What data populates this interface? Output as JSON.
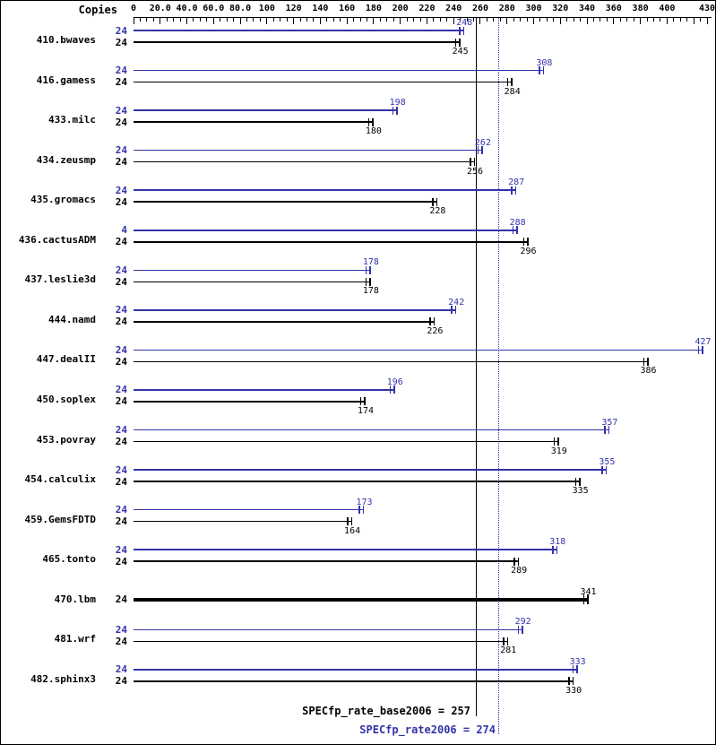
{
  "header": {
    "copies_label": "Copies"
  },
  "chart_data": {
    "type": "bar",
    "orientation": "horizontal",
    "axis": {
      "min": 0,
      "max": 430,
      "major_tick_step": 20,
      "minor_tick_step": 5,
      "labeled_ticks": [
        0,
        20,
        40,
        60,
        80,
        100,
        120,
        140,
        160,
        180,
        200,
        220,
        240,
        260,
        280,
        300,
        320,
        340,
        360,
        380,
        400,
        430
      ],
      "tick_labels": [
        "0",
        "20.0",
        "40.0",
        "60.0",
        "80.0",
        "100",
        "120",
        "140",
        "160",
        "180",
        "200",
        "220",
        "240",
        "260",
        "280",
        "300",
        "320",
        "340",
        "360",
        "380",
        "400",
        "430"
      ]
    },
    "series_colors": {
      "peak": "#3333aa",
      "base": "#000000"
    },
    "benchmarks": [
      {
        "name": "410.bwaves",
        "rows": [
          {
            "series": "peak",
            "copies": "24",
            "value": 248
          },
          {
            "series": "base",
            "copies": "24",
            "value": 245
          }
        ]
      },
      {
        "name": "416.gamess",
        "rows": [
          {
            "series": "peak",
            "copies": "24",
            "value": 308
          },
          {
            "series": "base",
            "copies": "24",
            "value": 284
          }
        ]
      },
      {
        "name": "433.milc",
        "rows": [
          {
            "series": "peak",
            "copies": "24",
            "value": 198
          },
          {
            "series": "base",
            "copies": "24",
            "value": 180
          }
        ]
      },
      {
        "name": "434.zeusmp",
        "rows": [
          {
            "series": "peak",
            "copies": "24",
            "value": 262
          },
          {
            "series": "base",
            "copies": "24",
            "value": 256
          }
        ]
      },
      {
        "name": "435.gromacs",
        "rows": [
          {
            "series": "peak",
            "copies": "24",
            "value": 287
          },
          {
            "series": "base",
            "copies": "24",
            "value": 228
          }
        ]
      },
      {
        "name": "436.cactusADM",
        "rows": [
          {
            "series": "peak",
            "copies": "4",
            "value": 288
          },
          {
            "series": "base",
            "copies": "24",
            "value": 296
          }
        ]
      },
      {
        "name": "437.leslie3d",
        "rows": [
          {
            "series": "peak",
            "copies": "24",
            "value": 178
          },
          {
            "series": "base",
            "copies": "24",
            "value": 178
          }
        ]
      },
      {
        "name": "444.namd",
        "rows": [
          {
            "series": "peak",
            "copies": "24",
            "value": 242
          },
          {
            "series": "base",
            "copies": "24",
            "value": 226
          }
        ]
      },
      {
        "name": "447.dealII",
        "rows": [
          {
            "series": "peak",
            "copies": "24",
            "value": 427
          },
          {
            "series": "base",
            "copies": "24",
            "value": 386
          }
        ]
      },
      {
        "name": "450.soplex",
        "rows": [
          {
            "series": "peak",
            "copies": "24",
            "value": 196
          },
          {
            "series": "base",
            "copies": "24",
            "value": 174
          }
        ]
      },
      {
        "name": "453.povray",
        "rows": [
          {
            "series": "peak",
            "copies": "24",
            "value": 357
          },
          {
            "series": "base",
            "copies": "24",
            "value": 319
          }
        ]
      },
      {
        "name": "454.calculix",
        "rows": [
          {
            "series": "peak",
            "copies": "24",
            "value": 355
          },
          {
            "series": "base",
            "copies": "24",
            "value": 335
          }
        ]
      },
      {
        "name": "459.GemsFDTD",
        "rows": [
          {
            "series": "peak",
            "copies": "24",
            "value": 173
          },
          {
            "series": "base",
            "copies": "24",
            "value": 164
          }
        ]
      },
      {
        "name": "465.tonto",
        "rows": [
          {
            "series": "peak",
            "copies": "24",
            "value": 318
          },
          {
            "series": "base",
            "copies": "24",
            "value": 289
          }
        ]
      },
      {
        "name": "470.lbm",
        "rows": [
          {
            "series": "base_peak",
            "copies": "24",
            "value": 341
          }
        ]
      },
      {
        "name": "481.wrf",
        "rows": [
          {
            "series": "peak",
            "copies": "24",
            "value": 292
          },
          {
            "series": "base",
            "copies": "24",
            "value": 281
          }
        ]
      },
      {
        "name": "482.sphinx3",
        "rows": [
          {
            "series": "peak",
            "copies": "24",
            "value": 333
          },
          {
            "series": "base",
            "copies": "24",
            "value": 330
          }
        ]
      }
    ],
    "reference_lines": [
      {
        "label": "SPECfp_rate_base2006 = 257",
        "value": 257,
        "style": "solid",
        "color": "#000000"
      },
      {
        "label": "SPECfp_rate2006 = 274",
        "value": 274,
        "style": "dotted",
        "color": "#3333aa"
      }
    ]
  }
}
